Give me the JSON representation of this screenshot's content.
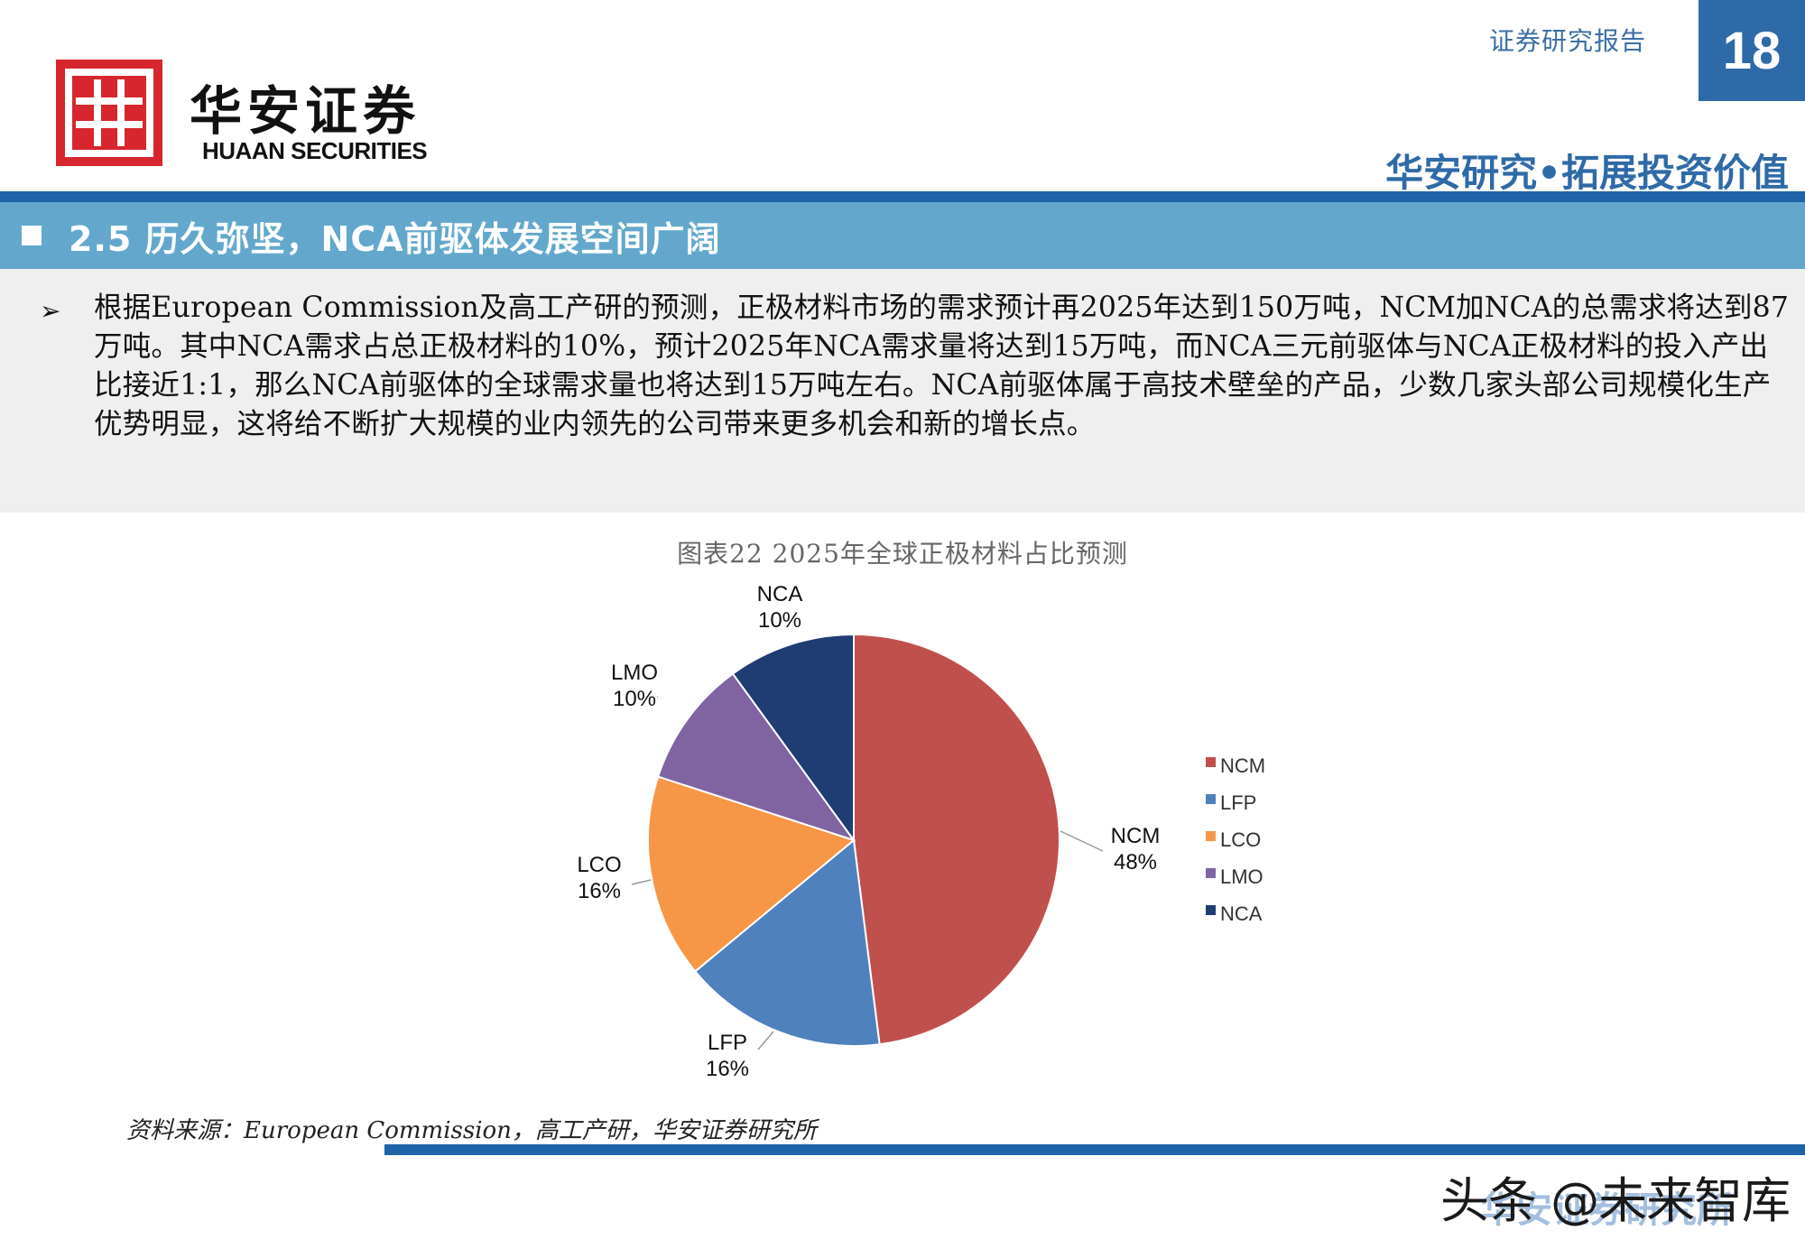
{
  "header": {
    "logo_cn": "华安证券",
    "logo_en": "HUAAN SECURITIES",
    "report_type": "证券研究报告",
    "page_number": "18",
    "slogan": "华安研究•拓展投资价值"
  },
  "section": {
    "title": "2.5 历久弥坚，NCA前驱体发展空间广阔"
  },
  "intro": {
    "bullet_symbol": "➢",
    "text": "根据European Commission及高工产研的预测，正极材料市场的需求预计再2025年达到150万吨，NCM加NCA的总需求将达到87万吨。其中NCA需求占总正极材料的10%，预计2025年NCA需求量将达到15万吨，而NCA三元前驱体与NCA正极材料的投入产出比接近1:1，那么NCA前驱体的全球需求量也将达到15万吨左右。NCA前驱体属于高技术壁垒的产品，少数几家头部公司规模化生产优势明显，这将给不断扩大规模的业内领先的公司带来更多机会和新的增长点。"
  },
  "chart_data": {
    "type": "pie",
    "title": "图表22 2025年全球正极材料占比预测",
    "legend_position": "right",
    "slices": [
      {
        "label": "NCM",
        "value": 48,
        "display": "48%",
        "color": "#c0504d"
      },
      {
        "label": "LFP",
        "value": 16,
        "display": "16%",
        "color": "#4f81bd"
      },
      {
        "label": "LCO",
        "value": 16,
        "display": "16%",
        "color": "#f79646"
      },
      {
        "label": "LMO",
        "value": 10,
        "display": "10%",
        "color": "#8064a2"
      },
      {
        "label": "NCA",
        "value": 10,
        "display": "10%",
        "color": "#1f3d73"
      }
    ]
  },
  "source": {
    "text": "资料来源：European Commission，高工产研，华安证券研究所"
  },
  "watermark": {
    "text": "头条 @未来智库",
    "under_text": "华安证券研究所"
  }
}
